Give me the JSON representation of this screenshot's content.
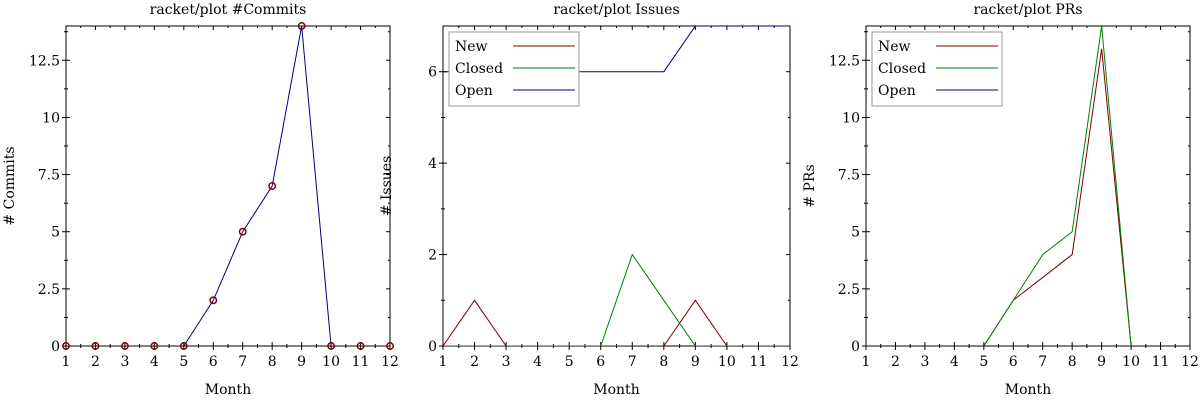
{
  "chart_data": [
    {
      "type": "line",
      "title": "racket/plot #Commits",
      "xlabel": "Month",
      "ylabel": "# Commits",
      "xlim": [
        1,
        12
      ],
      "ylim": [
        0,
        14
      ],
      "x_ticks": [
        1,
        2,
        3,
        4,
        5,
        6,
        7,
        8,
        9,
        10,
        11,
        12
      ],
      "y_ticks": [
        0,
        2.5,
        5,
        7.5,
        10,
        12.5
      ],
      "grid": false,
      "legend": null,
      "x": [
        1,
        2,
        3,
        4,
        5,
        6,
        7,
        8,
        9,
        10,
        11,
        12
      ],
      "series": [
        {
          "values": [
            0,
            0,
            0,
            0,
            0,
            2,
            5,
            7,
            14,
            0,
            0,
            0
          ],
          "color": "#00007f",
          "marker_color": "#7f0000",
          "markers": true
        }
      ]
    },
    {
      "type": "line",
      "title": "racket/plot Issues",
      "xlabel": "Month",
      "ylabel": "# Issues",
      "xlim": [
        1,
        12
      ],
      "ylim": [
        0,
        7
      ],
      "x_ticks": [
        1,
        2,
        3,
        4,
        5,
        6,
        7,
        8,
        9,
        10,
        11,
        12
      ],
      "y_ticks": [
        0,
        2,
        4,
        6
      ],
      "grid": false,
      "legend": "top-left",
      "x": [
        1,
        2,
        3,
        4,
        5,
        6,
        7,
        8,
        9,
        10,
        11,
        12
      ],
      "series": [
        {
          "name": "New",
          "values": [
            0,
            1,
            0,
            0,
            0,
            0,
            0,
            0,
            1,
            0,
            0,
            0
          ],
          "color": "#7f0000"
        },
        {
          "name": "Closed",
          "values": [
            0,
            0,
            0,
            0,
            0,
            0,
            2,
            1,
            0,
            0,
            0,
            0
          ],
          "color": "#007f00"
        },
        {
          "name": "Open",
          "values": [
            6,
            6,
            6,
            6,
            6,
            6,
            6,
            6,
            7,
            7,
            7,
            7
          ],
          "color": "#00007f"
        }
      ]
    },
    {
      "type": "line",
      "title": "racket/plot PRs",
      "xlabel": "Month",
      "ylabel": "# PRs",
      "xlim": [
        1,
        12
      ],
      "ylim": [
        0,
        14
      ],
      "x_ticks": [
        1,
        2,
        3,
        4,
        5,
        6,
        7,
        8,
        9,
        10,
        11,
        12
      ],
      "y_ticks": [
        0,
        2.5,
        5,
        7.5,
        10,
        12.5
      ],
      "grid": false,
      "legend": "top-left",
      "x": [
        1,
        2,
        3,
        4,
        5,
        6,
        7,
        8,
        9,
        10,
        11,
        12
      ],
      "series": [
        {
          "name": "New",
          "values": [
            0,
            0,
            0,
            0,
            0,
            2,
            3,
            4,
            13,
            0,
            0,
            0
          ],
          "color": "#7f0000"
        },
        {
          "name": "Closed",
          "values": [
            0,
            0,
            0,
            0,
            0,
            2,
            4,
            5,
            14,
            0,
            0,
            0
          ],
          "color": "#007f00"
        },
        {
          "name": "Open",
          "values": [
            0,
            0,
            0,
            0,
            0,
            0,
            0,
            0,
            0,
            0,
            0,
            0
          ],
          "color": "#00007f"
        }
      ]
    }
  ]
}
